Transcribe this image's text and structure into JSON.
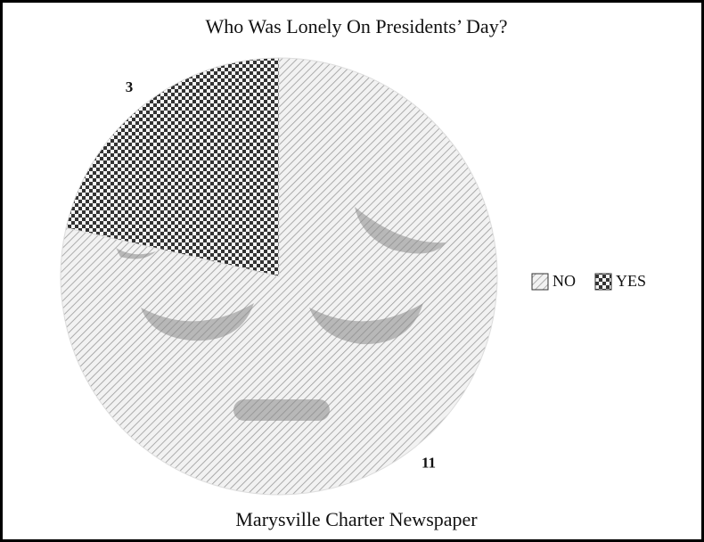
{
  "chart_data": {
    "type": "pie",
    "title": "Who Was Lonely On Presidents’ Day?",
    "footer": "Marysville Charter Newspaper",
    "categories": [
      "NO",
      "YES"
    ],
    "values": [
      11,
      3
    ],
    "patterns": [
      "hatch",
      "checker"
    ],
    "legend": "right"
  }
}
